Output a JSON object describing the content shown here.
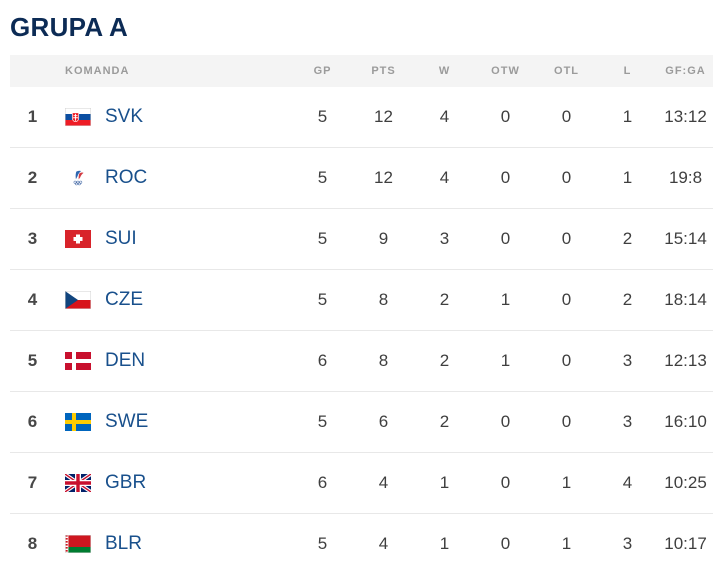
{
  "title": "GRUPA A",
  "colors": {
    "title_navy": "#0c2b55",
    "team_link_blue": "#19508c",
    "header_bg": "#f4f4f4",
    "header_text": "#9b9b9b",
    "value_text": "#3f3f3f",
    "row_divider": "#e8e8e8"
  },
  "table": {
    "headers": [
      "KOMANDA",
      "GP",
      "PTS",
      "W",
      "OTW",
      "OTL",
      "L",
      "GF:GA"
    ],
    "rows": [
      {
        "rank": "1",
        "flag": "svk",
        "team": "SVK",
        "gp": "5",
        "pts": "12",
        "w": "4",
        "otw": "0",
        "otl": "0",
        "l": "1",
        "gfga": "13:12"
      },
      {
        "rank": "2",
        "flag": "roc",
        "team": "ROC",
        "gp": "5",
        "pts": "12",
        "w": "4",
        "otw": "0",
        "otl": "0",
        "l": "1",
        "gfga": "19:8"
      },
      {
        "rank": "3",
        "flag": "sui",
        "team": "SUI",
        "gp": "5",
        "pts": "9",
        "w": "3",
        "otw": "0",
        "otl": "0",
        "l": "2",
        "gfga": "15:14"
      },
      {
        "rank": "4",
        "flag": "cze",
        "team": "CZE",
        "gp": "5",
        "pts": "8",
        "w": "2",
        "otw": "1",
        "otl": "0",
        "l": "2",
        "gfga": "18:14"
      },
      {
        "rank": "5",
        "flag": "den",
        "team": "DEN",
        "gp": "6",
        "pts": "8",
        "w": "2",
        "otw": "1",
        "otl": "0",
        "l": "3",
        "gfga": "12:13"
      },
      {
        "rank": "6",
        "flag": "swe",
        "team": "SWE",
        "gp": "5",
        "pts": "6",
        "w": "2",
        "otw": "0",
        "otl": "0",
        "l": "3",
        "gfga": "16:10"
      },
      {
        "rank": "7",
        "flag": "gbr",
        "team": "GBR",
        "gp": "6",
        "pts": "4",
        "w": "1",
        "otw": "0",
        "otl": "1",
        "l": "4",
        "gfga": "10:25"
      },
      {
        "rank": "8",
        "flag": "blr",
        "team": "BLR",
        "gp": "5",
        "pts": "4",
        "w": "1",
        "otw": "0",
        "otl": "1",
        "l": "3",
        "gfga": "10:17"
      }
    ]
  }
}
